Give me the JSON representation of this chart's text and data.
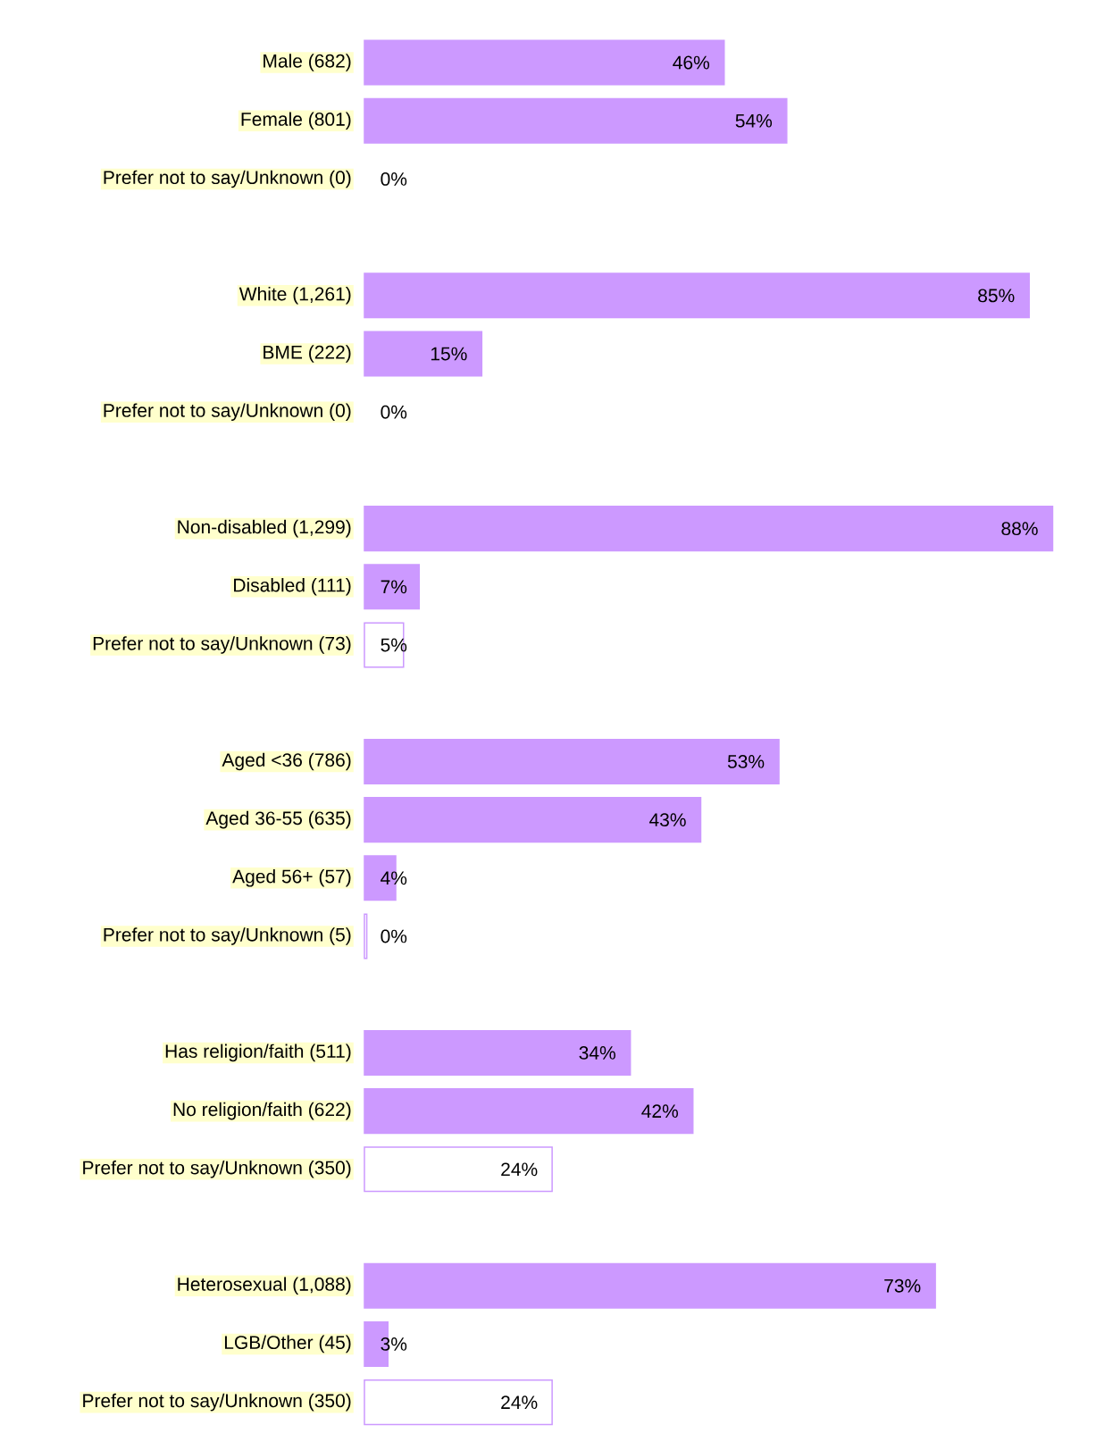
{
  "chart_data": {
    "type": "bar",
    "orientation": "horizontal",
    "color": "#cc99ff",
    "categories": [
      "Male (682)",
      "Female (801)",
      "Prefer not to say/Unknown (0)",
      null,
      "White (1,261)",
      "BME (222)",
      "Prefer not to say/Unknown (0)",
      null,
      "Non-disabled (1,299)",
      "Disabled (111)",
      "Prefer not to say/Unknown (73)",
      null,
      "Aged <36 (786)",
      "Aged 36-55 (635)",
      "Aged 56+ (57)",
      "Prefer not to say/Unknown (5)",
      null,
      "Has religion/faith (511)",
      "No religion/faith (622)",
      "Prefer not to say/Unknown (350)",
      null,
      "Heterosexual (1,088)",
      "LGB/Other (45)",
      "Prefer not to say/Unknown (350)"
    ],
    "values": [
      46,
      54,
      0,
      null,
      85,
      15,
      0,
      null,
      88,
      7,
      5,
      null,
      53,
      43,
      4,
      0.3,
      null,
      34,
      42,
      24,
      null,
      73,
      3,
      24
    ],
    "value_labels": [
      "46%",
      "54%",
      "0%",
      null,
      "85%",
      "15%",
      "0%",
      null,
      "88%",
      "7%",
      "5%",
      null,
      "53%",
      "43%",
      "4%",
      "0%",
      null,
      "34%",
      "42%",
      "24%",
      null,
      "73%",
      "3%",
      "24%"
    ],
    "colors": [
      "#cc99ff",
      "#cc99ff",
      "#ffffff",
      null,
      "#cc99ff",
      "#cc99ff",
      "#ffffff",
      null,
      "#cc99ff",
      "#cc99ff",
      "#ffffff",
      null,
      "#cc99ff",
      "#cc99ff",
      "#cc99ff",
      "#ffffff",
      null,
      "#cc99ff",
      "#cc99ff",
      "#ffffff",
      null,
      "#cc99ff",
      "#cc99ff",
      "#ffffff"
    ]
  }
}
